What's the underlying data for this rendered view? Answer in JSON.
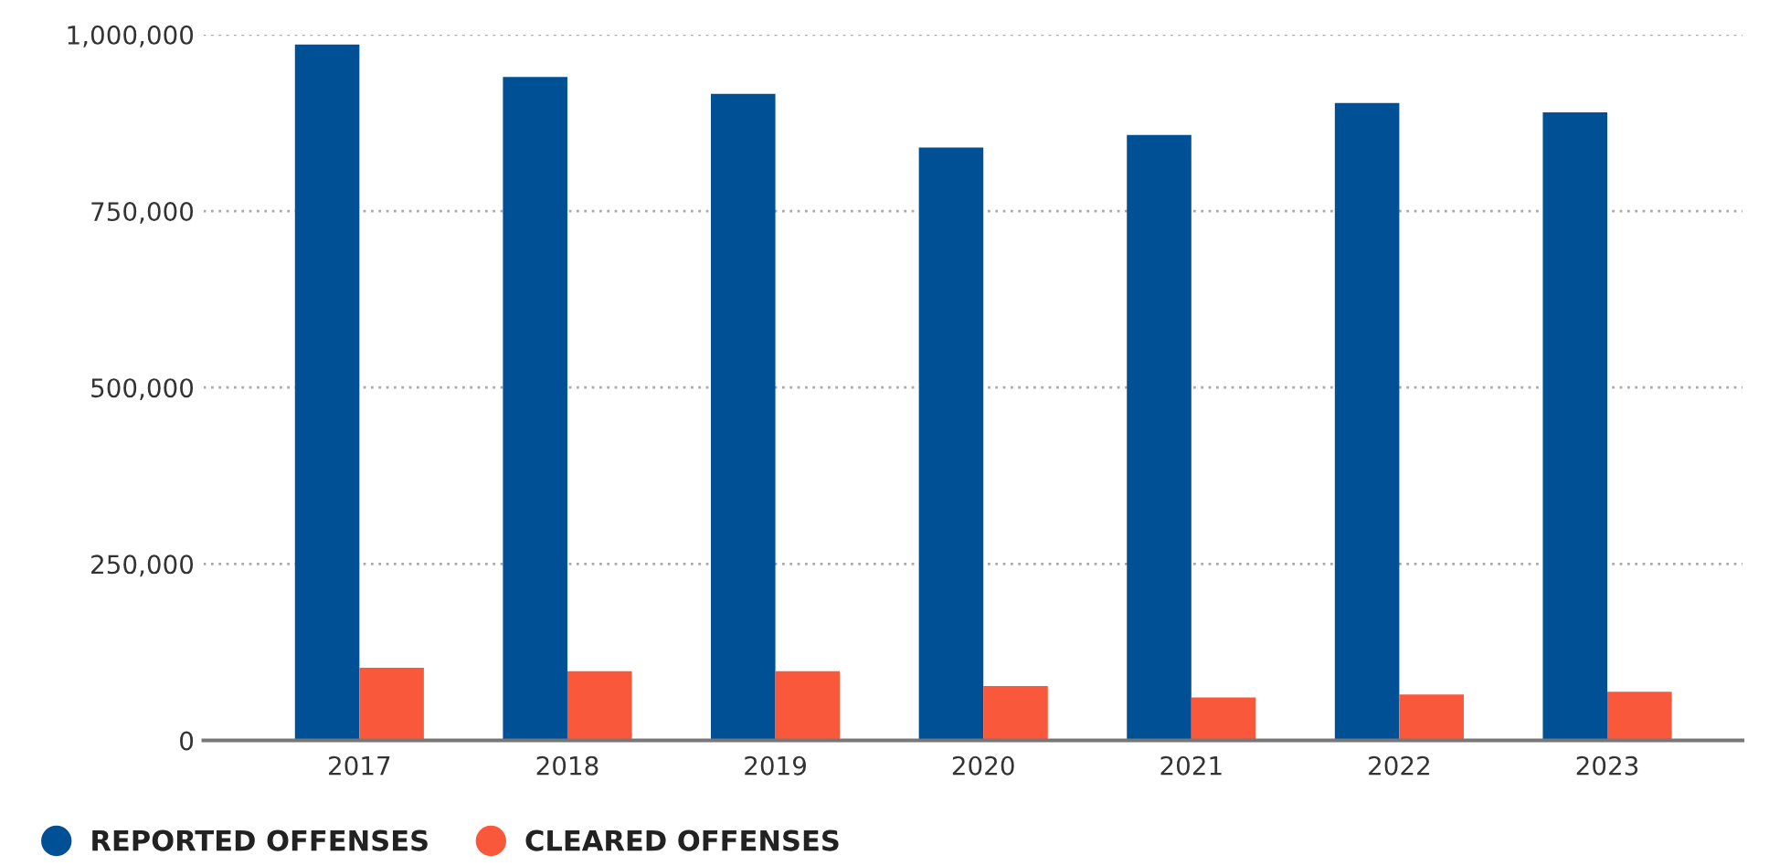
{
  "chart_data": {
    "type": "bar",
    "categories": [
      "2017",
      "2018",
      "2019",
      "2020",
      "2021",
      "2022",
      "2023"
    ],
    "series": [
      {
        "name": "REPORTED OFFENSES",
        "color": "#005095",
        "values": [
          986000,
          940000,
          916000,
          840000,
          858000,
          903000,
          890000
        ]
      },
      {
        "name": "CLEARED OFFENSES",
        "color": "#fa583a",
        "values": [
          103000,
          98000,
          98000,
          77000,
          61000,
          65000,
          69000
        ]
      }
    ],
    "ylim": [
      0,
      1000000
    ],
    "yticks": [
      {
        "value": 0,
        "label": "0"
      },
      {
        "value": 250000,
        "label": "250,000"
      },
      {
        "value": 500000,
        "label": "500,000"
      },
      {
        "value": 750000,
        "label": "750,000"
      },
      {
        "value": 1000000,
        "label": "1,000,000"
      }
    ],
    "grid": "y",
    "legend": "bottom left"
  }
}
